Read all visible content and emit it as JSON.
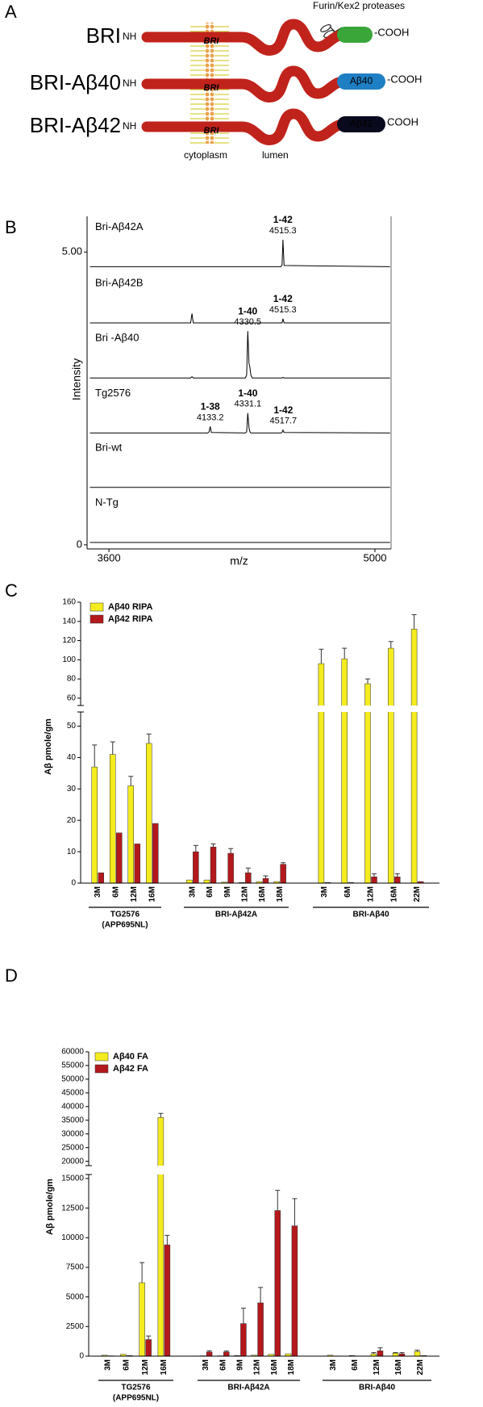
{
  "diagram": {
    "panel": "A",
    "protease_label": "Furin/Kex2 proteases",
    "compartments": [
      "cytoplasm",
      "lumen"
    ],
    "constructs": [
      {
        "name": "BRI",
        "n_term": "NH",
        "domain": "BRI",
        "c_term": "-COOH",
        "cap_color": "#3aa63a"
      },
      {
        "name": "BRI-Aβ40",
        "n_term": "NH",
        "domain": "BRI",
        "peptide": "Aβ40",
        "c_term": "-COOH",
        "cap_color": "#1f7fc4"
      },
      {
        "name": "BRI-Aβ42",
        "n_term": "NH",
        "domain": "BRI",
        "peptide": "Aβ42",
        "c_term": "COOH",
        "cap_color": "#0a0a1e"
      }
    ]
  },
  "chart_data": [
    {
      "panel": "B",
      "type": "spectra",
      "xlabel": "m/z",
      "ylabel": "Intensity",
      "xlim": [
        3485,
        5085
      ],
      "xticks": [
        3600,
        5000
      ],
      "ylim": [
        -0.07,
        5.61
      ],
      "yticks": [
        0,
        {
          "value": 5,
          "label": "5.00"
        }
      ],
      "x": [
        3500,
        3950,
        4030,
        4037,
        4044,
        4120,
        4127,
        4133,
        4139,
        4318,
        4325,
        4331,
        4337,
        4342,
        4347,
        4354,
        4505,
        4511,
        4516,
        4522,
        5080
      ],
      "series": [
        {
          "name": "Bri-Aβ42A",
          "color": "#000000",
          "values": [
            4.75,
            4.75,
            4.75,
            4.75,
            4.75,
            4.75,
            4.75,
            4.75,
            4.75,
            4.75,
            4.75,
            4.75,
            4.75,
            4.75,
            4.75,
            4.75,
            4.75,
            4.78,
            5.21,
            4.77,
            4.75
          ],
          "peaks": [
            {
              "label": "1-42",
              "x": 4515.3
            }
          ]
        },
        {
          "name": "Bri-Aβ42B",
          "color": "#000000",
          "values": [
            3.79,
            3.79,
            3.79,
            3.95,
            3.79,
            3.79,
            3.79,
            3.79,
            3.79,
            3.79,
            3.79,
            3.79,
            3.79,
            3.79,
            3.79,
            3.79,
            3.79,
            3.79,
            3.86,
            3.79,
            3.79
          ],
          "peaks": [
            {
              "label": "1-42",
              "x": 4515.3
            }
          ]
        },
        {
          "name": "Bri -Aβ40",
          "color": "#000000",
          "values": [
            2.85,
            2.85,
            2.85,
            2.87,
            2.85,
            2.85,
            2.85,
            2.85,
            2.85,
            2.85,
            2.9,
            3.65,
            3.1,
            3.03,
            2.9,
            2.85,
            2.85,
            2.85,
            2.86,
            2.85,
            2.85
          ],
          "peaks": [
            {
              "label": "1-40",
              "x": 4330.5
            }
          ]
        },
        {
          "name": "Tg2576",
          "color": "#000000",
          "values": [
            1.91,
            1.91,
            1.91,
            1.91,
            1.91,
            1.91,
            1.93,
            2.02,
            1.92,
            1.91,
            1.93,
            2.25,
            2.0,
            1.93,
            1.91,
            1.91,
            1.91,
            1.92,
            1.96,
            1.92,
            1.91
          ],
          "peaks": [
            {
              "label": "1-38",
              "x": 4133.2
            },
            {
              "label": "1-40",
              "x": 4331.1
            },
            {
              "label": "1-42",
              "x": 4517.7
            }
          ]
        },
        {
          "name": "Bri-wt",
          "color": "#000000",
          "values": [
            0.98,
            0.98,
            0.98,
            0.98,
            0.98,
            0.98,
            0.98,
            0.98,
            0.98,
            0.98,
            0.98,
            0.98,
            0.98,
            0.98,
            0.98,
            0.98,
            0.98,
            0.98,
            0.98,
            0.98,
            0.98
          ],
          "peaks": []
        },
        {
          "name": "N-Tg",
          "color": "#000000",
          "values": [
            0.04,
            0.04,
            0.04,
            0.04,
            0.04,
            0.04,
            0.04,
            0.04,
            0.04,
            0.04,
            0.04,
            0.04,
            0.04,
            0.04,
            0.04,
            0.04,
            0.04,
            0.04,
            0.04,
            0.04,
            0.04
          ],
          "peaks": []
        }
      ]
    },
    {
      "panel": "C",
      "type": "grouped-bar-broken",
      "ylabel": "Aβ pmole/gm",
      "y_segments": [
        {
          "ylim": [
            0,
            54
          ],
          "yticks": [
            0,
            10,
            20,
            30,
            40,
            50
          ]
        },
        {
          "ylim": [
            54,
            160
          ],
          "yticks": [
            60,
            80,
            100,
            120,
            140,
            160
          ]
        }
      ],
      "groups": [
        {
          "label": "TG2576",
          "sublabel": "(APP695NL)",
          "categories": [
            "3M",
            "6M",
            "12M",
            "16M"
          ]
        },
        {
          "label": "BRI-Aβ42A",
          "categories": [
            "3M",
            "6M",
            "9M",
            "12M",
            "16M",
            "18M"
          ]
        },
        {
          "label": "BRI-Aβ40",
          "categories": [
            "3M",
            "6M",
            "12M",
            "16M",
            "22M"
          ]
        }
      ],
      "series": [
        {
          "name": "Aβ40 RIPA",
          "color": "#f4ec1e",
          "values": [
            [
              37,
              41,
              31,
              44.5
            ],
            [
              1,
              1,
              0.3,
              0.2,
              0.5,
              0.5
            ],
            [
              96,
              101,
              75,
              112,
              132
            ]
          ],
          "errors": [
            [
              7,
              4,
              3,
              3
            ],
            [
              null,
              null,
              null,
              null,
              null,
              null
            ],
            [
              15,
              11,
              5,
              7,
              15
            ]
          ]
        },
        {
          "name": "Aβ42 RIPA",
          "color": "#b3191c",
          "values": [
            [
              3.3,
              16,
              12.5,
              19
            ],
            [
              10,
              11.5,
              9.5,
              3.3,
              1.5,
              6
            ],
            [
              0.2,
              0.2,
              2,
              2,
              0.5
            ]
          ],
          "errors": [
            [
              null,
              null,
              null,
              null
            ],
            [
              2,
              1,
              1.5,
              1.5,
              0.8,
              0.5
            ],
            [
              null,
              null,
              1,
              1,
              null
            ]
          ]
        }
      ]
    },
    {
      "panel": "D",
      "type": "grouped-bar-broken",
      "ylabel": "Aβ pmole/gm",
      "y_segments": [
        {
          "ylim": [
            0,
            15200
          ],
          "yticks": [
            0,
            2500,
            5000,
            7500,
            10000,
            12500,
            15000
          ]
        },
        {
          "ylim": [
            19000,
            60000
          ],
          "yticks": [
            20000,
            25000,
            30000,
            35000,
            40000,
            45000,
            50000,
            55000,
            60000
          ]
        }
      ],
      "groups": [
        {
          "label": "TG2576",
          "sublabel": "(APP695NL)",
          "categories": [
            "3M",
            "6M",
            "12M",
            "16M"
          ]
        },
        {
          "label": "BRI-Aβ42A",
          "categories": [
            "3M",
            "6M",
            "9M",
            "12M",
            "16M",
            "18M"
          ]
        },
        {
          "label": "BRI-Aβ40",
          "categories": [
            "3M",
            "6M",
            "12M",
            "16M",
            "22M"
          ]
        }
      ],
      "series": [
        {
          "name": "Aβ40 FA",
          "color": "#f4ec1e",
          "values": [
            [
              80,
              150,
              6200,
              36000
            ],
            [
              30,
              30,
              50,
              80,
              150,
              200
            ],
            [
              80,
              50,
              200,
              250,
              400
            ]
          ],
          "errors": [
            [
              null,
              null,
              1700,
              1500
            ],
            [
              null,
              null,
              null,
              null,
              null,
              null
            ],
            [
              null,
              null,
              100,
              50,
              100
            ]
          ]
        },
        {
          "name": "Aβ42 FA",
          "color": "#b3191c",
          "values": [
            [
              30,
              50,
              1400,
              9400
            ],
            [
              350,
              350,
              2750,
              4500,
              12300,
              11000
            ],
            [
              20,
              20,
              450,
              200,
              50
            ]
          ],
          "errors": [
            [
              null,
              null,
              300,
              800
            ],
            [
              100,
              80,
              1300,
              1300,
              1700,
              2300
            ],
            [
              null,
              null,
              250,
              100,
              null
            ]
          ]
        }
      ]
    }
  ]
}
